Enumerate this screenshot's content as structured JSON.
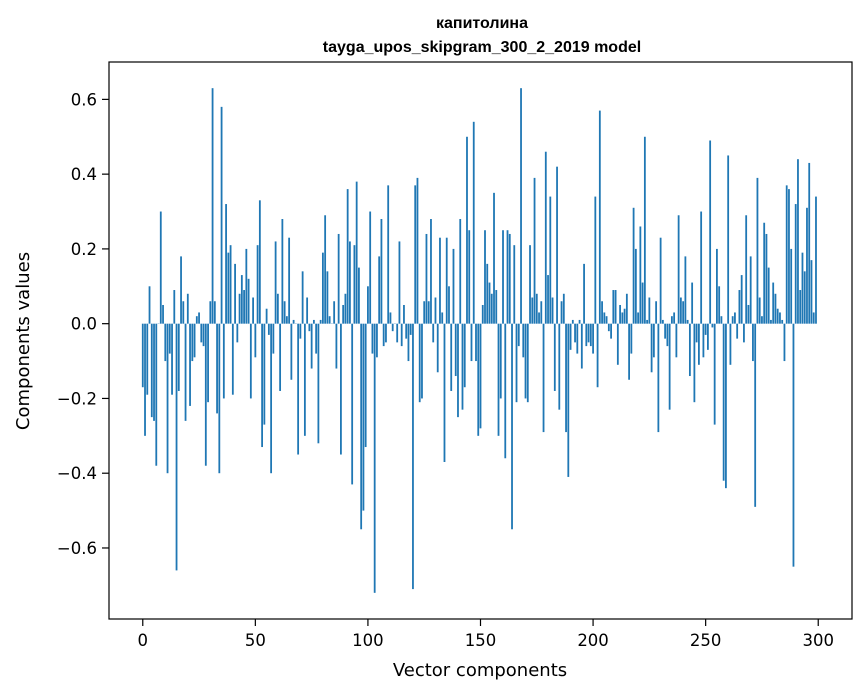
{
  "chart_data": {
    "type": "bar",
    "title": "капитолина",
    "subtitle": "tayga_upos_skipgram_300_2_2019 model",
    "xlabel": "Vector components",
    "ylabel": "Components values",
    "xlim": [
      -15,
      315
    ],
    "ylim": [
      -0.79,
      0.7
    ],
    "xticks": [
      0,
      50,
      100,
      150,
      200,
      250,
      300
    ],
    "xtick_labels": [
      "0",
      "50",
      "100",
      "150",
      "200",
      "250",
      "300"
    ],
    "yticks": [
      -0.6,
      -0.4,
      -0.2,
      0.0,
      0.2,
      0.4,
      0.6
    ],
    "ytick_labels": [
      "−0.6",
      "−0.4",
      "−0.2",
      "0.0",
      "0.2",
      "0.4",
      "0.6"
    ],
    "grid": false,
    "bar_color": "#1f77b4",
    "x": "0..299",
    "values": [
      -0.17,
      -0.3,
      -0.19,
      0.1,
      -0.25,
      -0.26,
      -0.38,
      0.0,
      0.3,
      0.05,
      -0.1,
      -0.4,
      -0.08,
      -0.19,
      0.09,
      -0.66,
      -0.18,
      0.18,
      0.06,
      -0.26,
      0.08,
      -0.22,
      -0.1,
      -0.09,
      0.02,
      0.03,
      -0.05,
      -0.06,
      -0.38,
      -0.21,
      0.06,
      0.63,
      0.06,
      -0.24,
      -0.4,
      0.58,
      -0.2,
      0.32,
      0.19,
      0.21,
      -0.19,
      0.16,
      -0.05,
      0.08,
      0.13,
      0.09,
      0.2,
      0.12,
      -0.2,
      0.07,
      -0.09,
      0.21,
      0.33,
      -0.33,
      -0.27,
      0.04,
      -0.03,
      -0.4,
      -0.08,
      0.22,
      0.08,
      -0.18,
      0.28,
      0.06,
      0.02,
      0.23,
      -0.15,
      0.01,
      0.0,
      -0.35,
      -0.04,
      0.14,
      -0.3,
      0.07,
      -0.02,
      -0.12,
      0.01,
      -0.08,
      -0.32,
      0.01,
      0.19,
      0.29,
      0.14,
      0.02,
      0.0,
      0.06,
      -0.12,
      0.24,
      -0.35,
      0.05,
      0.08,
      0.36,
      0.22,
      -0.43,
      0.21,
      0.38,
      0.15,
      -0.55,
      -0.5,
      -0.33,
      0.1,
      0.3,
      -0.08,
      -0.72,
      -0.09,
      0.18,
      0.28,
      -0.06,
      -0.05,
      0.37,
      0.03,
      -0.02,
      0.0,
      -0.05,
      0.22,
      -0.06,
      0.05,
      -0.04,
      -0.1,
      -0.03,
      -0.71,
      0.37,
      0.39,
      -0.21,
      -0.2,
      0.06,
      0.24,
      0.06,
      0.28,
      -0.05,
      0.07,
      -0.13,
      0.23,
      0.03,
      -0.37,
      0.23,
      0.1,
      -0.18,
      0.2,
      -0.14,
      -0.25,
      0.28,
      -0.23,
      -0.17,
      0.5,
      0.25,
      -0.1,
      0.54,
      -0.1,
      -0.3,
      -0.28,
      0.05,
      0.25,
      0.16,
      0.11,
      0.08,
      0.35,
      0.09,
      -0.3,
      -0.2,
      0.25,
      -0.36,
      0.25,
      0.24,
      -0.55,
      0.21,
      -0.21,
      -0.06,
      0.63,
      -0.09,
      -0.2,
      -0.21,
      0.21,
      0.07,
      0.39,
      0.08,
      0.03,
      0.06,
      -0.29,
      0.46,
      0.13,
      0.34,
      0.07,
      -0.18,
      0.42,
      -0.23,
      0.06,
      0.08,
      -0.29,
      -0.41,
      -0.07,
      0.01,
      -0.05,
      -0.08,
      0.01,
      -0.12,
      0.16,
      -0.06,
      -0.05,
      -0.06,
      -0.08,
      0.34,
      -0.17,
      0.57,
      0.06,
      0.03,
      0.02,
      -0.02,
      -0.04,
      0.09,
      0.09,
      -0.11,
      0.05,
      0.03,
      0.04,
      0.08,
      -0.15,
      -0.08,
      0.31,
      0.2,
      0.03,
      0.26,
      0.11,
      0.5,
      0.01,
      0.07,
      -0.13,
      -0.09,
      0.06,
      -0.29,
      0.23,
      0.01,
      -0.04,
      -0.06,
      -0.23,
      0.02,
      0.03,
      -0.09,
      0.29,
      0.07,
      0.06,
      0.18,
      0.01,
      -0.14,
      0.11,
      -0.21,
      -0.05,
      -0.11,
      0.3,
      -0.09,
      -0.03,
      -0.07,
      0.49,
      -0.01,
      -0.27,
      0.2,
      0.1,
      0.02,
      -0.42,
      -0.44,
      0.45,
      -0.11,
      0.02,
      0.03,
      -0.04,
      0.09,
      0.13,
      -0.05,
      0.29,
      0.05,
      0.18,
      -0.1,
      -0.49,
      0.39,
      0.07,
      0.02,
      0.27,
      0.24,
      0.15,
      0.01,
      0.11,
      0.08,
      0.04,
      0.03,
      0.01,
      -0.1,
      0.37,
      0.36,
      0.2,
      -0.65,
      0.32,
      0.44,
      0.09,
      0.19,
      0.14,
      0.31,
      0.43,
      0.17,
      0.03,
      0.34
    ]
  }
}
